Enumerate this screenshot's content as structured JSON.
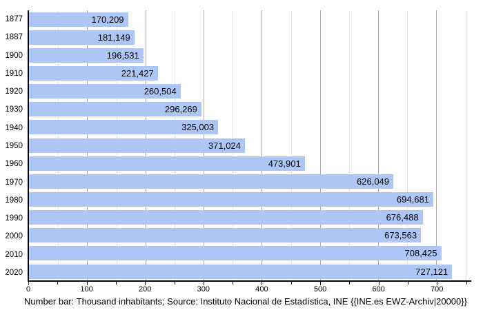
{
  "chart_data": {
    "type": "bar",
    "orientation": "horizontal",
    "title": "",
    "xlabel": "",
    "ylabel": "",
    "unit": "Thousand inhabitants",
    "categories": [
      "1877",
      "1887",
      "1900",
      "1910",
      "1920",
      "1930",
      "1940",
      "1950",
      "1960",
      "1970",
      "1980",
      "1990",
      "2000",
      "2010",
      "2020"
    ],
    "values": [
      170.209,
      181.149,
      196.531,
      221.427,
      260.504,
      296.269,
      325.003,
      371.024,
      473.901,
      626.049,
      694.681,
      676.488,
      673.563,
      708.425,
      727.121
    ],
    "value_labels": [
      "170,209",
      "181,149",
      "196,531",
      "221,427",
      "260,504",
      "296,269",
      "325,003",
      "371,024",
      "473,901",
      "626,049",
      "694,681",
      "676,488",
      "673,563",
      "708,425",
      "727,121"
    ],
    "xlim": [
      0,
      760
    ],
    "x_major_ticks": [
      0,
      100,
      200,
      300,
      400,
      500,
      600,
      700
    ],
    "x_tick_labels": [
      "0",
      "100",
      "200",
      "300",
      "400",
      "500",
      "600",
      "700"
    ],
    "x_minor_ticks": [
      50,
      150,
      250,
      350,
      450,
      550,
      650,
      750
    ],
    "grid": "vertical",
    "legend": "none",
    "caption": "Number bar: Thousand inhabitants; Source: Instituto Nacional de Estadística, INE {{INE.es EWZ-Archiv|20000}}",
    "colors": {
      "bar_fill": "#aec6f6",
      "major_grid": "#a8a8a8",
      "minor_grid": "#e4e4e4",
      "axis": "#000000",
      "text": "#000000",
      "background": "#ffffff"
    }
  }
}
